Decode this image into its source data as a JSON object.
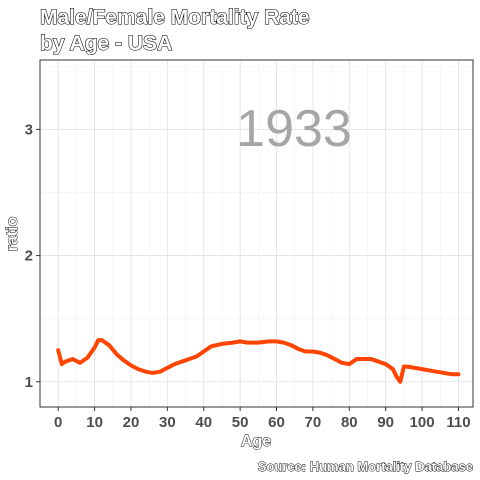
{
  "chart_data": {
    "type": "line",
    "title": "Male/Female Mortality Rate",
    "subtitle": "by Age - USA",
    "xlabel": "Age",
    "ylabel": "ratio",
    "caption": "Source: Human Mortality Database",
    "year_label": "1933",
    "xlim": [
      -5,
      114
    ],
    "ylim": [
      0.8,
      3.55
    ],
    "x_ticks": [
      0,
      10,
      20,
      30,
      40,
      50,
      60,
      70,
      80,
      90,
      100,
      110
    ],
    "y_ticks": [
      1,
      2,
      3
    ],
    "grid": true,
    "line_color": "#ff4500",
    "series": [
      {
        "x": [
          0,
          1,
          2,
          4,
          6,
          8,
          10,
          11,
          12,
          14,
          16,
          18,
          20,
          22,
          24,
          26,
          28,
          30,
          32,
          35,
          38,
          40,
          42,
          45,
          48,
          50,
          52,
          55,
          58,
          60,
          62,
          64,
          66,
          68,
          70,
          72,
          74,
          76,
          78,
          80,
          82,
          84,
          86,
          88,
          90,
          92,
          93,
          94,
          95,
          96,
          98,
          100,
          102,
          104,
          106,
          108,
          110
        ],
        "y": [
          1.25,
          1.14,
          1.16,
          1.18,
          1.15,
          1.19,
          1.27,
          1.33,
          1.33,
          1.29,
          1.22,
          1.17,
          1.13,
          1.1,
          1.08,
          1.07,
          1.08,
          1.11,
          1.14,
          1.17,
          1.2,
          1.24,
          1.28,
          1.3,
          1.31,
          1.32,
          1.31,
          1.31,
          1.32,
          1.32,
          1.31,
          1.29,
          1.26,
          1.24,
          1.24,
          1.23,
          1.21,
          1.18,
          1.15,
          1.14,
          1.18,
          1.18,
          1.18,
          1.16,
          1.14,
          1.1,
          1.04,
          1.0,
          1.12,
          1.12,
          1.11,
          1.1,
          1.09,
          1.08,
          1.07,
          1.06,
          1.06
        ]
      }
    ]
  }
}
